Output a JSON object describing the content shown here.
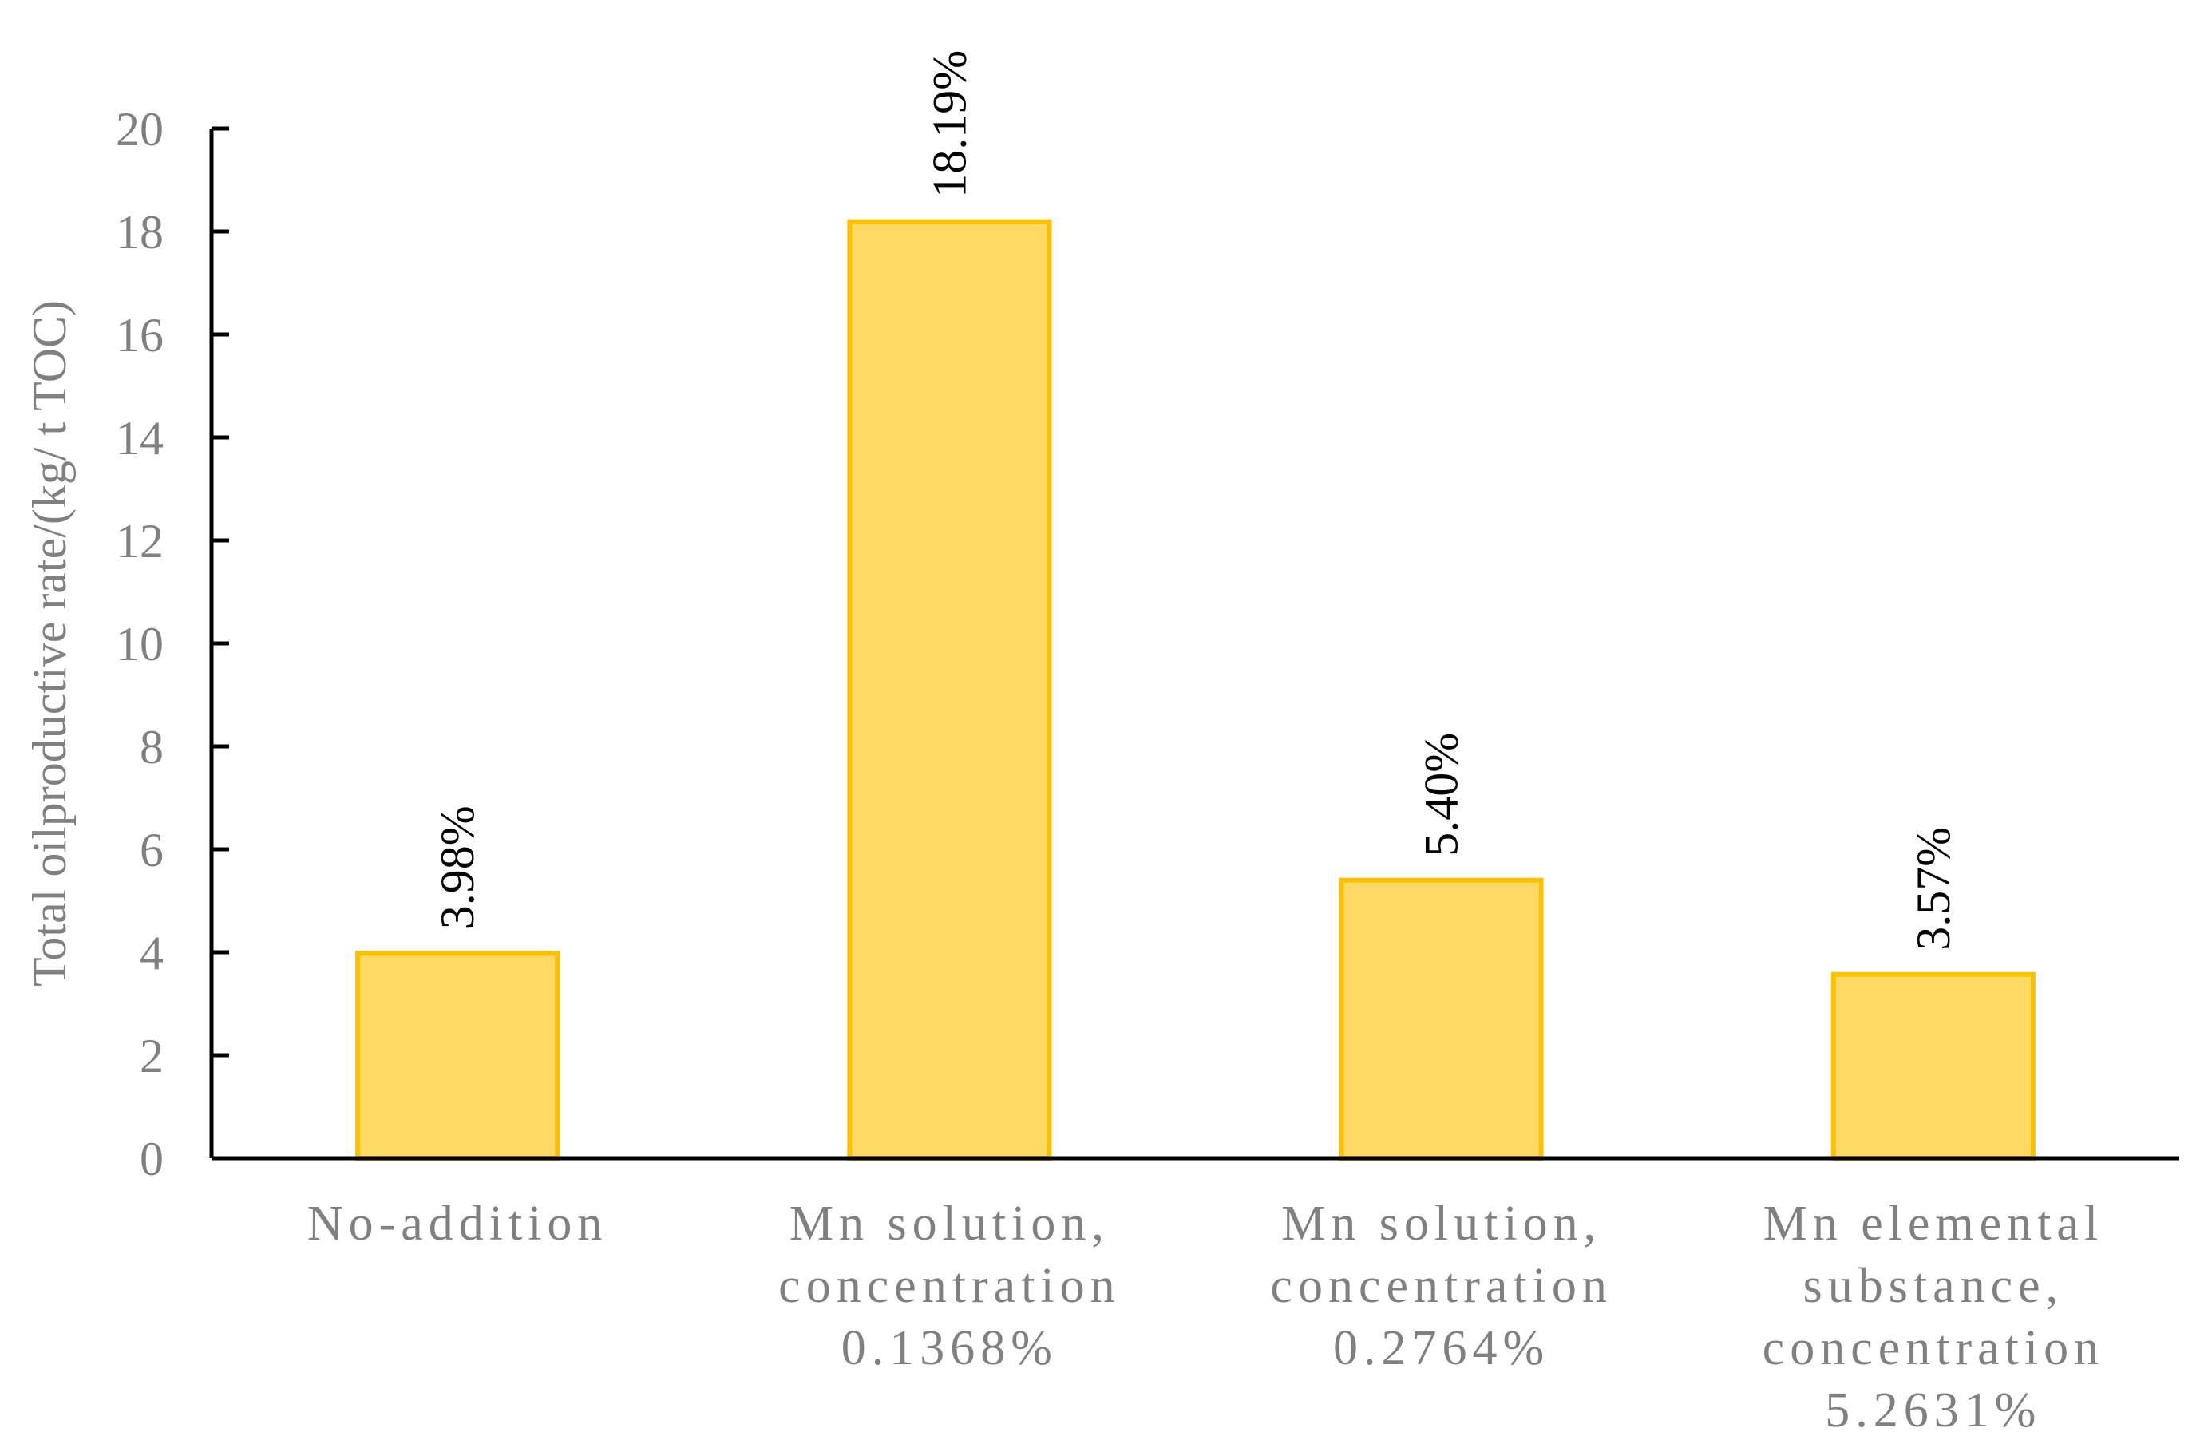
{
  "chart_data": {
    "type": "bar",
    "title": "",
    "xlabel": "",
    "ylabel": "Total oilproductive rate/(kg/ t TOC)",
    "ylim": [
      0,
      20
    ],
    "yticks": [
      0,
      2,
      4,
      6,
      8,
      10,
      12,
      14,
      16,
      18,
      20
    ],
    "grid": false,
    "legend": "none",
    "categories": [
      [
        "No-addition"
      ],
      [
        "Mn solution,",
        "concentration",
        "0.1368%"
      ],
      [
        "Mn solution,",
        "concentration",
        "0.2764%"
      ],
      [
        "Mn elemental",
        "substance,",
        "concentration",
        "5.2631%"
      ]
    ],
    "values": [
      3.98,
      18.19,
      5.4,
      3.57
    ],
    "data_labels": [
      "3.98%",
      "18.19%",
      "5.40%",
      "3.57%"
    ],
    "colors": {
      "bar_fill": "#FFD966",
      "bar_stroke": "#FFC000",
      "axis": "#000000",
      "tick_text": "#808080",
      "data_label": "#000000"
    }
  }
}
